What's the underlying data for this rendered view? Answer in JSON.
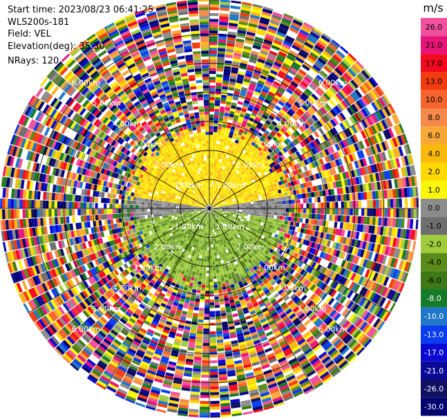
{
  "info": {
    "start_time": "Start time: 2023/08/23 06:41:25",
    "station": "WLS200s-181",
    "field": "Field: VEL",
    "elevation": "Elevation(deg): 35.30",
    "nrays": "NRays: 120"
  },
  "chart_data": {
    "type": "heatmap",
    "projection": "polar-ppi",
    "n_rays": 120,
    "range_ring_unit": "km",
    "range_rings": [
      1.0,
      2.0,
      3.0,
      4.0,
      5.0,
      6.0
    ],
    "range_ring_labels": [
      "1.00km",
      "2.00km",
      "3.00km",
      "4.00km",
      "5.00km",
      "6.00km"
    ],
    "spokes_deg": [
      0,
      30,
      60,
      90,
      120,
      150,
      180,
      210,
      240,
      270,
      300,
      330
    ],
    "max_range_km": 7.2,
    "clean_data_range_km": 2.9,
    "colorbar": {
      "unit": "m/s",
      "levels": [
        "26.0",
        "21.0",
        "17.0",
        "13.0",
        "10.0",
        "8.0",
        "6.0",
        "4.0",
        "2.0",
        "1.0",
        "0.0",
        "-1.0",
        "-2.0",
        "-4.0",
        "-6.0",
        "-8.0",
        "-10.0",
        "-13.0",
        "-17.0",
        "-21.0",
        "-26.0",
        "-30.0"
      ],
      "colors": [
        "#f0509e",
        "#e8147a",
        "#f20a1e",
        "#f23c0f",
        "#f5642d",
        "#f58a4b",
        "#f7a836",
        "#fbb90b",
        "#ffd900",
        "#fbf50a",
        "#8c8c8c",
        "#6e6e6e",
        "#a0cc3c",
        "#5b8b1a",
        "#3d7a17",
        "#157a2a",
        "#1e77c8",
        "#0a3cf0",
        "#0a0ad2",
        "#0a0a96",
        "#101060",
        "#00006e"
      ]
    },
    "near_field_pattern": "positive (yellow/orange) toward north sector, grey near zero toward east-west, negative (green) toward south sector; noise beyond ~3 km"
  }
}
